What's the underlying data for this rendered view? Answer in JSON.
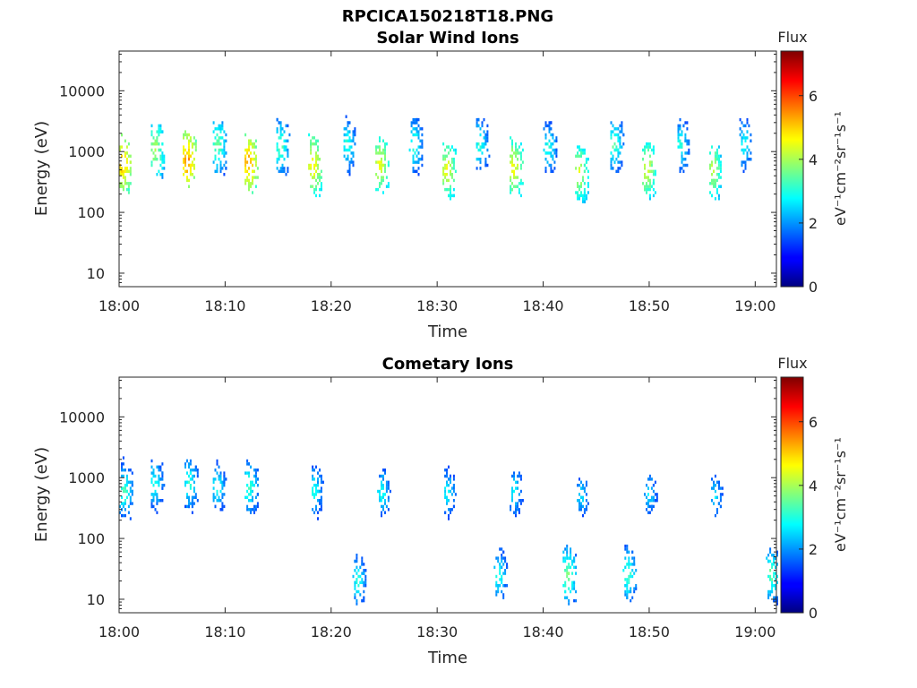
{
  "figure_title": "RPCICA150218T18.PNG",
  "chart_data": [
    {
      "type": "heatmap",
      "title": "Solar Wind Ions",
      "xlabel": "Time",
      "ylabel": "Energy (eV)",
      "y_scale": "log",
      "xlim": [
        "18:00",
        "19:02"
      ],
      "ylim": [
        6,
        45000
      ],
      "x_ticks": [
        "18:00",
        "18:10",
        "18:20",
        "18:30",
        "18:40",
        "18:50",
        "19:00"
      ],
      "y_ticks": [
        {
          "value": 10,
          "label": "10"
        },
        {
          "value": 100,
          "label": "100"
        },
        {
          "value": 1000,
          "label": "1000"
        },
        {
          "value": 10000,
          "label": "10000"
        }
      ],
      "colorbar": {
        "label": "Flux",
        "units": "eV⁻¹cm⁻²sr⁻¹s⁻¹",
        "range": [
          0,
          7.4
        ],
        "ticks": [
          0,
          2,
          4,
          6
        ],
        "colormap": "jet"
      },
      "bursts": [
        {
          "t": 0.3,
          "peak_energy": 650,
          "peak_flux": 5.6
        },
        {
          "t": 3.4,
          "peak_energy": 1100,
          "peak_flux": 4.5
        },
        {
          "t": 6.4,
          "peak_energy": 700,
          "peak_flux": 5.8
        },
        {
          "t": 9.3,
          "peak_energy": 1300,
          "peak_flux": 4.0
        },
        {
          "t": 12.2,
          "peak_energy": 650,
          "peak_flux": 5.7
        },
        {
          "t": 15.2,
          "peak_energy": 1200,
          "peak_flux": 3.8
        },
        {
          "t": 18.3,
          "peak_energy": 600,
          "peak_flux": 5.2
        },
        {
          "t": 21.5,
          "peak_energy": 1300,
          "peak_flux": 3.5
        },
        {
          "t": 24.6,
          "peak_energy": 600,
          "peak_flux": 4.9
        },
        {
          "t": 27.8,
          "peak_energy": 1300,
          "peak_flux": 3.6
        },
        {
          "t": 30.9,
          "peak_energy": 500,
          "peak_flux": 4.9
        },
        {
          "t": 34.0,
          "peak_energy": 1300,
          "peak_flux": 3.5
        },
        {
          "t": 37.2,
          "peak_energy": 550,
          "peak_flux": 5.0
        },
        {
          "t": 40.5,
          "peak_energy": 1200,
          "peak_flux": 3.4
        },
        {
          "t": 43.4,
          "peak_energy": 450,
          "peak_flux": 4.7
        },
        {
          "t": 46.7,
          "peak_energy": 1300,
          "peak_flux": 3.7
        },
        {
          "t": 49.8,
          "peak_energy": 500,
          "peak_flux": 4.8
        },
        {
          "t": 53.0,
          "peak_energy": 1300,
          "peak_flux": 3.4
        },
        {
          "t": 56.0,
          "peak_energy": 500,
          "peak_flux": 4.6
        },
        {
          "t": 59.0,
          "peak_energy": 1300,
          "peak_flux": 3.3
        }
      ]
    },
    {
      "type": "heatmap",
      "title": "Cometary Ions",
      "xlabel": "Time",
      "ylabel": "Energy (eV)",
      "y_scale": "log",
      "xlim": [
        "18:00",
        "19:02"
      ],
      "ylim": [
        6,
        45000
      ],
      "x_ticks": [
        "18:00",
        "18:10",
        "18:20",
        "18:30",
        "18:40",
        "18:50",
        "19:00"
      ],
      "y_ticks": [
        {
          "value": 10,
          "label": "10"
        },
        {
          "value": 100,
          "label": "100"
        },
        {
          "value": 1000,
          "label": "1000"
        },
        {
          "value": 10000,
          "label": "10000"
        }
      ],
      "colorbar": {
        "label": "Flux",
        "units": "eV⁻¹cm⁻²sr⁻¹s⁻¹",
        "range": [
          0,
          7.4
        ],
        "ticks": [
          0,
          2,
          4,
          6
        ],
        "colormap": "jet"
      },
      "bursts": [
        {
          "t": 0.3,
          "peak_energy": 2200,
          "peak_flux": 1.8
        },
        {
          "t": 0.5,
          "peak_energy": 600,
          "peak_flux": 3.6
        },
        {
          "t": 3.4,
          "peak_energy": 800,
          "peak_flux": 3.4
        },
        {
          "t": 6.4,
          "peak_energy": 2200,
          "peak_flux": 1.6
        },
        {
          "t": 6.6,
          "peak_energy": 800,
          "peak_flux": 3.5
        },
        {
          "t": 9.3,
          "peak_energy": 700,
          "peak_flux": 3.3
        },
        {
          "t": 12.2,
          "peak_energy": 2200,
          "peak_flux": 1.6
        },
        {
          "t": 12.3,
          "peak_energy": 700,
          "peak_flux": 3.6
        },
        {
          "t": 18.3,
          "peak_energy": 2200,
          "peak_flux": 1.6
        },
        {
          "t": 18.4,
          "peak_energy": 600,
          "peak_flux": 3.4
        },
        {
          "t": 24.6,
          "peak_energy": 2200,
          "peak_flux": 1.6
        },
        {
          "t": 24.8,
          "peak_energy": 550,
          "peak_flux": 3.3
        },
        {
          "t": 30.9,
          "peak_energy": 2200,
          "peak_flux": 1.6
        },
        {
          "t": 31.0,
          "peak_energy": 550,
          "peak_flux": 3.2
        },
        {
          "t": 37.2,
          "peak_energy": 2200,
          "peak_flux": 1.6
        },
        {
          "t": 37.3,
          "peak_energy": 600,
          "peak_flux": 3.2
        },
        {
          "t": 43.4,
          "peak_energy": 1800,
          "peak_flux": 1.6
        },
        {
          "t": 43.6,
          "peak_energy": 500,
          "peak_flux": 3.0
        },
        {
          "t": 49.8,
          "peak_energy": 2000,
          "peak_flux": 1.6
        },
        {
          "t": 50.0,
          "peak_energy": 550,
          "peak_flux": 3.0
        },
        {
          "t": 56.0,
          "peak_energy": 2000,
          "peak_flux": 1.6
        },
        {
          "t": 56.2,
          "peak_energy": 500,
          "peak_flux": 3.0
        },
        {
          "t": 22.5,
          "peak_energy": 20,
          "peak_flux": 3.4
        },
        {
          "t": 35.8,
          "peak_energy": 25,
          "peak_flux": 3.4
        },
        {
          "t": 42.3,
          "peak_energy": 25,
          "peak_flux": 4.0
        },
        {
          "t": 48.0,
          "peak_energy": 25,
          "peak_flux": 3.7
        },
        {
          "t": 61.5,
          "peak_energy": 25,
          "peak_flux": 3.8
        }
      ]
    }
  ]
}
